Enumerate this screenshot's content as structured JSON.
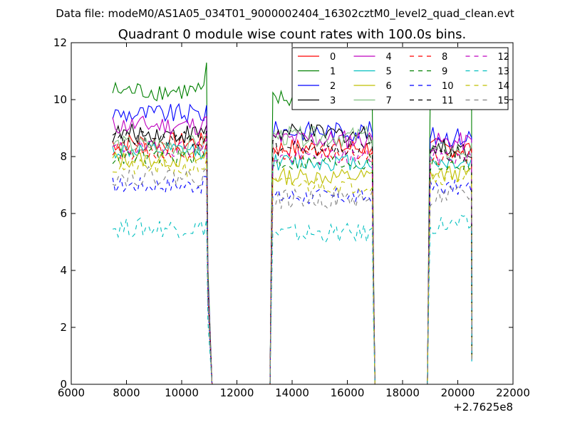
{
  "chart_data": {
    "type": "line",
    "suptitle": "Data file: modeM0/AS1A05_034T01_9000002404_16302cztM0_level2_quad_clean.evt",
    "title": "Quadrant 0 module wise count rates with 100.0s bins.",
    "xlabel": "",
    "ylabel": "",
    "x_offset_label": "+2.7625e8",
    "xlim": [
      6000,
      22000
    ],
    "ylim": [
      0,
      12
    ],
    "xticks": [
      6000,
      8000,
      10000,
      12000,
      14000,
      16000,
      18000,
      20000,
      22000
    ],
    "yticks": [
      0,
      2,
      4,
      6,
      8,
      10,
      12
    ],
    "xtick_labels": [
      "6000",
      "8000",
      "10000",
      "12000",
      "14000",
      "16000",
      "18000",
      "20000",
      "22000"
    ],
    "ytick_labels": [
      "0",
      "2",
      "4",
      "6",
      "8",
      "10",
      "12"
    ],
    "legend_position": "top-right",
    "segments": [
      {
        "start": 7500,
        "end": 10900,
        "fall_end": 11100
      },
      {
        "rise_start": 13200,
        "start": 13300,
        "end": 16900,
        "fall_end": 17000
      },
      {
        "rise_start": 18900,
        "start": 19000,
        "end": 20500,
        "fall_end": 20500
      }
    ],
    "gaps": [
      [
        11100,
        13200
      ],
      [
        17000,
        18900
      ]
    ],
    "series": [
      {
        "name": "0",
        "color": "#ff0000",
        "dash": "solid",
        "level_seg1": 8.5,
        "level_seg2": 8.3,
        "level_seg3": 8.3,
        "noise": 0.35
      },
      {
        "name": "1",
        "color": "#008000",
        "dash": "solid",
        "level_seg1": 10.3,
        "level_seg2": 10.0,
        "level_seg3": 10.0,
        "noise": 0.35
      },
      {
        "name": "2",
        "color": "#0000ff",
        "dash": "solid",
        "level_seg1": 9.5,
        "level_seg2": 8.9,
        "level_seg3": 8.7,
        "noise": 0.35
      },
      {
        "name": "3",
        "color": "#000000",
        "dash": "solid",
        "level_seg1": 8.8,
        "level_seg2": 8.8,
        "level_seg3": 8.3,
        "noise": 0.35
      },
      {
        "name": "4",
        "color": "#bf00bf",
        "dash": "solid",
        "level_seg1": 9.1,
        "level_seg2": 8.6,
        "level_seg3": 8.5,
        "noise": 0.35
      },
      {
        "name": "5",
        "color": "#00bfbf",
        "dash": "solid",
        "level_seg1": 8.2,
        "level_seg2": 7.8,
        "level_seg3": 7.8,
        "noise": 0.3
      },
      {
        "name": "6",
        "color": "#bfbf00",
        "dash": "solid",
        "level_seg1": 7.9,
        "level_seg2": 7.3,
        "level_seg3": 7.4,
        "noise": 0.3
      },
      {
        "name": "7",
        "color": "#7fbf7f",
        "dash": "solid",
        "level_seg1": 8.4,
        "level_seg2": 8.7,
        "level_seg3": 8.2,
        "noise": 0.35
      },
      {
        "name": "8",
        "color": "#ff0000",
        "dash": "dashed",
        "level_seg1": 8.2,
        "level_seg2": 8.1,
        "level_seg3": 8.0,
        "noise": 0.3
      },
      {
        "name": "9",
        "color": "#008000",
        "dash": "dashed",
        "level_seg1": 8.0,
        "level_seg2": 7.8,
        "level_seg3": 7.7,
        "noise": 0.3
      },
      {
        "name": "10",
        "color": "#0000ff",
        "dash": "dashed",
        "level_seg1": 7.0,
        "level_seg2": 6.6,
        "level_seg3": 6.9,
        "noise": 0.3
      },
      {
        "name": "11",
        "color": "#000000",
        "dash": "dashed",
        "level_seg1": 8.6,
        "level_seg2": 8.3,
        "level_seg3": 8.1,
        "noise": 0.3
      },
      {
        "name": "12",
        "color": "#bf00bf",
        "dash": "dashed",
        "level_seg1": 8.3,
        "level_seg2": 8.0,
        "level_seg3": 8.0,
        "noise": 0.3
      },
      {
        "name": "13",
        "color": "#00bfbf",
        "dash": "dashed",
        "level_seg1": 5.5,
        "level_seg2": 5.3,
        "level_seg3": 5.6,
        "noise": 0.35
      },
      {
        "name": "14",
        "color": "#bfbf00",
        "dash": "dashed",
        "level_seg1": 7.6,
        "level_seg2": 7.0,
        "level_seg3": 7.3,
        "noise": 0.3
      },
      {
        "name": "15",
        "color": "#7f7f7f",
        "dash": "dashed",
        "level_seg1": 7.3,
        "level_seg2": 6.5,
        "level_seg3": 6.6,
        "noise": 0.35
      }
    ]
  }
}
